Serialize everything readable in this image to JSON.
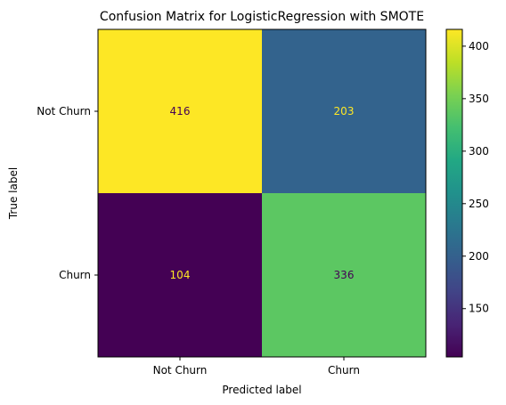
{
  "chart_data": {
    "type": "heatmap",
    "title": "Confusion Matrix for LogisticRegression with SMOTE",
    "xlabel": "Predicted label",
    "ylabel": "True label",
    "x_categories": [
      "Not Churn",
      "Churn"
    ],
    "y_categories": [
      "Not Churn",
      "Churn"
    ],
    "values": [
      [
        416,
        203
      ],
      [
        104,
        336
      ]
    ],
    "colormap": "viridis",
    "colorbar": {
      "min": 104,
      "max": 416,
      "ticks": [
        150,
        200,
        250,
        300,
        350,
        400
      ],
      "tick_labels": [
        "150",
        "200",
        "250",
        "300",
        "350",
        "400"
      ]
    },
    "cell_text_colors": {
      "light_on_dark": "#fde725",
      "dark_on_light": "#440154"
    },
    "grid": false
  }
}
